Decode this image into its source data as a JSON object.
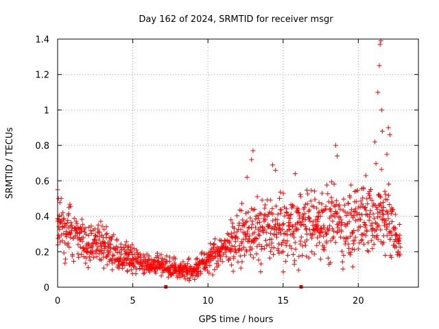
{
  "chart_data": {
    "type": "scatter",
    "title": "Day 162 of 2024, SRMTID for receiver msgr",
    "xlabel": "GPS time / hours",
    "ylabel": "SRMTID / TECUs",
    "xlim": [
      0,
      24
    ],
    "ylim": [
      0,
      1.4
    ],
    "grid": true,
    "xticks": [
      0,
      5,
      10,
      15,
      20
    ],
    "xtick_labels": [
      "0",
      "5",
      "10",
      "15",
      "20"
    ],
    "yticks": [
      0,
      0.2,
      0.4,
      0.6,
      0.8,
      1.0,
      1.2,
      1.4
    ],
    "ytick_labels": [
      "0",
      "0.2",
      "0.4",
      "0.6",
      "0.8",
      "1",
      "1.2",
      "1.4"
    ],
    "marker": "plus",
    "color": "#ff0000",
    "x_end": 22.8,
    "baseline_markers": [
      7.2,
      16.2
    ],
    "envelope": [
      {
        "x": 0.0,
        "median": 0.32,
        "spread": 0.12
      },
      {
        "x": 1.0,
        "median": 0.32,
        "spread": 0.1
      },
      {
        "x": 2.0,
        "median": 0.24,
        "spread": 0.08
      },
      {
        "x": 3.0,
        "median": 0.25,
        "spread": 0.09
      },
      {
        "x": 4.0,
        "median": 0.17,
        "spread": 0.07
      },
      {
        "x": 5.0,
        "median": 0.16,
        "spread": 0.06
      },
      {
        "x": 6.0,
        "median": 0.13,
        "spread": 0.04
      },
      {
        "x": 7.0,
        "median": 0.13,
        "spread": 0.04
      },
      {
        "x": 8.0,
        "median": 0.1,
        "spread": 0.04
      },
      {
        "x": 9.0,
        "median": 0.09,
        "spread": 0.04
      },
      {
        "x": 10.0,
        "median": 0.16,
        "spread": 0.06
      },
      {
        "x": 11.0,
        "median": 0.22,
        "spread": 0.08
      },
      {
        "x": 12.0,
        "median": 0.27,
        "spread": 0.1
      },
      {
        "x": 13.0,
        "median": 0.32,
        "spread": 0.12
      },
      {
        "x": 14.0,
        "median": 0.33,
        "spread": 0.13
      },
      {
        "x": 15.0,
        "median": 0.33,
        "spread": 0.13
      },
      {
        "x": 16.0,
        "median": 0.35,
        "spread": 0.14
      },
      {
        "x": 17.0,
        "median": 0.35,
        "spread": 0.14
      },
      {
        "x": 18.0,
        "median": 0.34,
        "spread": 0.14
      },
      {
        "x": 19.0,
        "median": 0.36,
        "spread": 0.15
      },
      {
        "x": 20.0,
        "median": 0.38,
        "spread": 0.15
      },
      {
        "x": 21.0,
        "median": 0.4,
        "spread": 0.17
      },
      {
        "x": 22.0,
        "median": 0.38,
        "spread": 0.16
      },
      {
        "x": 22.8,
        "median": 0.25,
        "spread": 0.06
      }
    ],
    "notable_points": [
      {
        "x": 0.0,
        "y": 0.55
      },
      {
        "x": 0.05,
        "y": 0.5
      },
      {
        "x": 12.6,
        "y": 0.62
      },
      {
        "x": 12.9,
        "y": 0.72
      },
      {
        "x": 13.0,
        "y": 0.77
      },
      {
        "x": 14.3,
        "y": 0.69
      },
      {
        "x": 14.5,
        "y": 0.66
      },
      {
        "x": 15.8,
        "y": 0.64
      },
      {
        "x": 18.5,
        "y": 0.8
      },
      {
        "x": 18.6,
        "y": 0.74
      },
      {
        "x": 20.5,
        "y": 0.63
      },
      {
        "x": 21.1,
        "y": 0.82
      },
      {
        "x": 21.3,
        "y": 1.1
      },
      {
        "x": 21.4,
        "y": 1.25
      },
      {
        "x": 21.45,
        "y": 1.37
      },
      {
        "x": 21.5,
        "y": 1.39
      },
      {
        "x": 21.55,
        "y": 1.0
      },
      {
        "x": 21.6,
        "y": 0.88
      },
      {
        "x": 22.0,
        "y": 0.9
      },
      {
        "x": 22.1,
        "y": 0.86
      },
      {
        "x": 21.9,
        "y": 0.75
      },
      {
        "x": 21.8,
        "y": 0.18
      }
    ]
  }
}
